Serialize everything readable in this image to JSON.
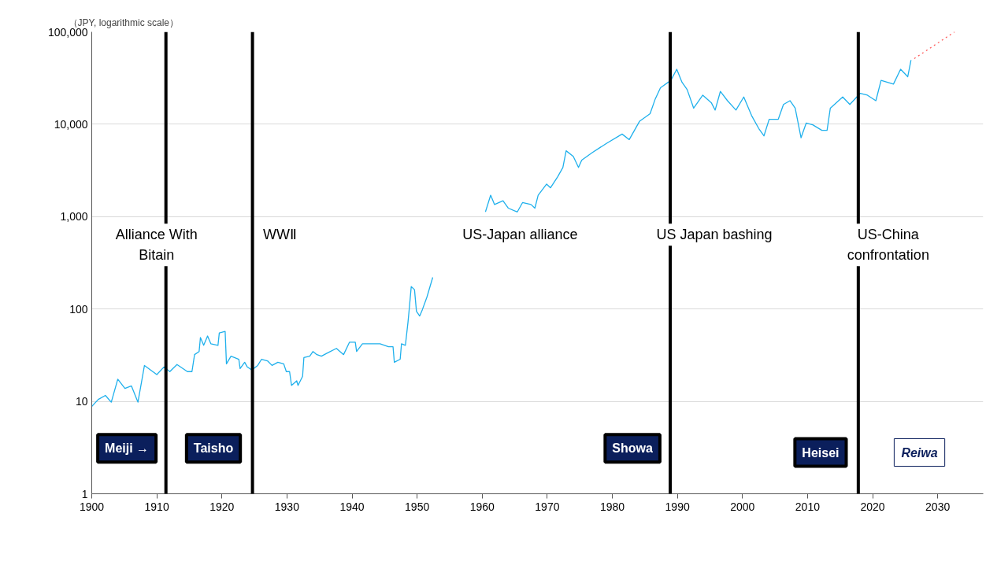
{
  "chart_data": {
    "type": "line",
    "ylabel": "（JPY, logarithmic scale）",
    "log": "y",
    "xlim": [
      1900,
      2037
    ],
    "ylim": [
      1,
      100000
    ],
    "xticks": [
      1900,
      1910,
      1920,
      1930,
      1940,
      1950,
      1960,
      1970,
      1980,
      1990,
      2000,
      2010,
      2020,
      2030
    ],
    "yticks": [
      1,
      10,
      100,
      {
        "value": 1000,
        "label": "1,000"
      },
      {
        "value": 10000,
        "label": "10,000"
      },
      {
        "value": 100000,
        "label": "100,000"
      }
    ],
    "grid": "y",
    "series": [
      {
        "color": "#1fb0ec",
        "line_style": "solid",
        "x": [
          1900.0,
          1901.0,
          1902.1,
          1903.0,
          1904.0,
          1905.1,
          1906.1,
          1907.1,
          1908.1,
          1910.0,
          1911.1,
          1912.0,
          1913.1,
          1914.7,
          1915.4,
          1915.8,
          1916.5,
          1916.7,
          1917.2,
          1917.8,
          1918.3,
          1919.4,
          1919.6,
          1920.5,
          1920.7,
          1921.4,
          1922.6,
          1922.8,
          1923.5,
          1923.9,
          1924.6,
          1925.5,
          1926.1,
          1927.0,
          1927.7,
          1928.6,
          1929.5,
          1929.9,
          1930.4,
          1930.7,
          1931.5,
          1931.7,
          1932.4,
          1932.6,
          1933.5,
          1934.0,
          1934.6,
          1935.3,
          1936.2,
          1937.6,
          1938.7,
          1939.6,
          1940.5,
          1940.7,
          1941.6,
          1942.5,
          1944.3,
          1945.6,
          1946.3,
          1946.5,
          1947.4,
          1947.6,
          1948.2,
          1948.6,
          1948.8,
          1949.1,
          1949.6,
          1949.9,
          1950.4,
          1950.8,
          1951.5,
          1952.4,
          1956.0,
          1960.5,
          1961.3,
          1961.9,
          1963.2,
          1964.0,
          1965.4,
          1966.2,
          1967.5,
          1968.1,
          1968.6,
          1969.9,
          1970.5,
          1971.6,
          1972.4,
          1972.9,
          1974.0,
          1974.8,
          1975.3,
          1976.9,
          1979.1,
          1981.5,
          1982.6,
          1984.2,
          1985.8,
          1986.6,
          1987.4,
          1989.0,
          1989.9,
          1990.7,
          1991.5,
          1992.5,
          1993.9,
          1995.2,
          1995.8,
          1996.6,
          1997.7,
          1999.0,
          2000.2,
          2001.4,
          2002.5,
          2003.3,
          2004.1,
          2005.5,
          2006.3,
          2007.3,
          2008.1,
          2009.0,
          2009.8,
          2010.8,
          2012.2,
          2013.0,
          2013.5,
          2015.4,
          2016.5,
          2018.1,
          2019.2,
          2020.5,
          2021.3,
          2023.2,
          2024.3,
          2025.4,
          2025.9
        ],
        "values": [
          8.8,
          10.5,
          11.6,
          9.8,
          17.4,
          13.8,
          14.7,
          9.8,
          24.5,
          19.5,
          23.6,
          21.0,
          25.1,
          21.0,
          21.0,
          32.1,
          34.7,
          49.1,
          40.5,
          51.0,
          42.1,
          40.5,
          55.1,
          57.3,
          25.5,
          30.9,
          28.6,
          22.7,
          26.5,
          23.6,
          21.9,
          24.5,
          28.6,
          27.5,
          24.5,
          26.5,
          25.5,
          21.0,
          21.0,
          14.9,
          16.7,
          14.9,
          18.7,
          29.8,
          30.9,
          34.7,
          32.1,
          30.9,
          33.4,
          37.5,
          32.1,
          43.7,
          43.7,
          34.7,
          42.1,
          42.1,
          42.1,
          39.0,
          39.0,
          26.5,
          28.6,
          42.1,
          40.5,
          72.1,
          102,
          175,
          162,
          94.4,
          84.1,
          98.2,
          134,
          220,
          null,
          1125,
          1706,
          1353,
          1486,
          1236,
          1125,
          1419,
          1353,
          1236,
          1706,
          2249,
          2051,
          2705,
          3405,
          5160,
          4495,
          3405,
          4095,
          4930,
          6210,
          7830,
          6820,
          10810,
          13000,
          18820,
          24820,
          29850,
          39370,
          28510,
          23720,
          14930,
          20650,
          17150,
          14250,
          22650,
          17980,
          14250,
          19720,
          12420,
          8995,
          7480,
          11320,
          11320,
          16370,
          17980,
          14930,
          7140,
          10320,
          9860,
          8590,
          8590,
          14930,
          19720,
          16370,
          21630,
          20650,
          17980,
          29850,
          27220,
          39370,
          32730,
          49540
        ]
      },
      {
        "color": "#ff5b5b",
        "line_style": "dotted",
        "x": [
          2026.4,
          2032.6
        ],
        "values": [
          51400,
          100000
        ]
      }
    ],
    "ref_lines": [
      {
        "axis": "x",
        "value": 1911.4,
        "color": "#000000",
        "label": "Alliance With\nBitain"
      },
      {
        "axis": "x",
        "value": 1924.7,
        "color": "#000000",
        "label": "WWⅡ"
      },
      {
        "axis": "x",
        "value": 1988.9,
        "color": "#000000",
        "label": "US Japan bashing"
      },
      {
        "axis": "x",
        "value": 2017.8,
        "color": "#000000",
        "label": "US-China\nconfrontation"
      }
    ],
    "annotations": [
      "US-Japan alliance",
      "Meiji →",
      "Taisho",
      "Showa",
      "Heisei",
      "Reiwa"
    ]
  }
}
